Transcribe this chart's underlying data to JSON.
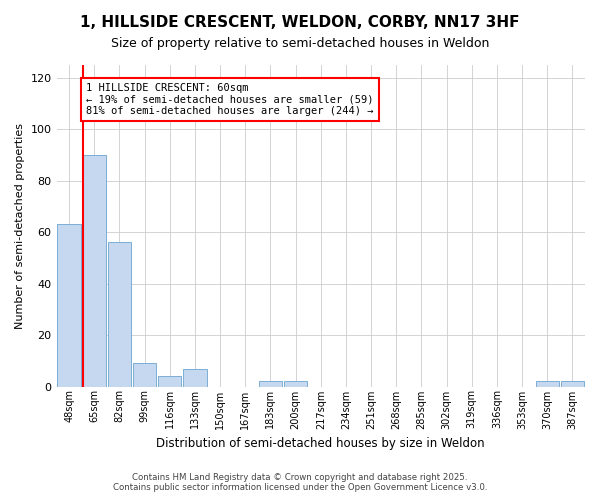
{
  "title": "1, HILLSIDE CRESCENT, WELDON, CORBY, NN17 3HF",
  "subtitle": "Size of property relative to semi-detached houses in Weldon",
  "xlabel": "Distribution of semi-detached houses by size in Weldon",
  "ylabel": "Number of semi-detached properties",
  "categories": [
    "48sqm",
    "65sqm",
    "82sqm",
    "99sqm",
    "116sqm",
    "133sqm",
    "150sqm",
    "167sqm",
    "183sqm",
    "200sqm",
    "217sqm",
    "234sqm",
    "251sqm",
    "268sqm",
    "285sqm",
    "302sqm",
    "319sqm",
    "336sqm",
    "353sqm",
    "370sqm",
    "387sqm"
  ],
  "values": [
    63,
    90,
    56,
    9,
    4,
    7,
    0,
    0,
    2,
    2,
    0,
    0,
    0,
    0,
    0,
    0,
    0,
    0,
    0,
    2,
    2
  ],
  "bar_color": "#c5d8f0",
  "bar_edge_color": "#7baed4",
  "red_line_index": 1,
  "annotation_title": "1 HILLSIDE CRESCENT: 60sqm",
  "annotation_line1": "← 19% of semi-detached houses are smaller (59)",
  "annotation_line2": "81% of semi-detached houses are larger (244) →",
  "ylim": [
    0,
    125
  ],
  "yticks": [
    0,
    20,
    40,
    60,
    80,
    100,
    120
  ],
  "footer1": "Contains HM Land Registry data © Crown copyright and database right 2025.",
  "footer2": "Contains public sector information licensed under the Open Government Licence v3.0.",
  "bg_color": "#ffffff",
  "plot_bg_color": "#ffffff",
  "title_fontsize": 11,
  "subtitle_fontsize": 9
}
